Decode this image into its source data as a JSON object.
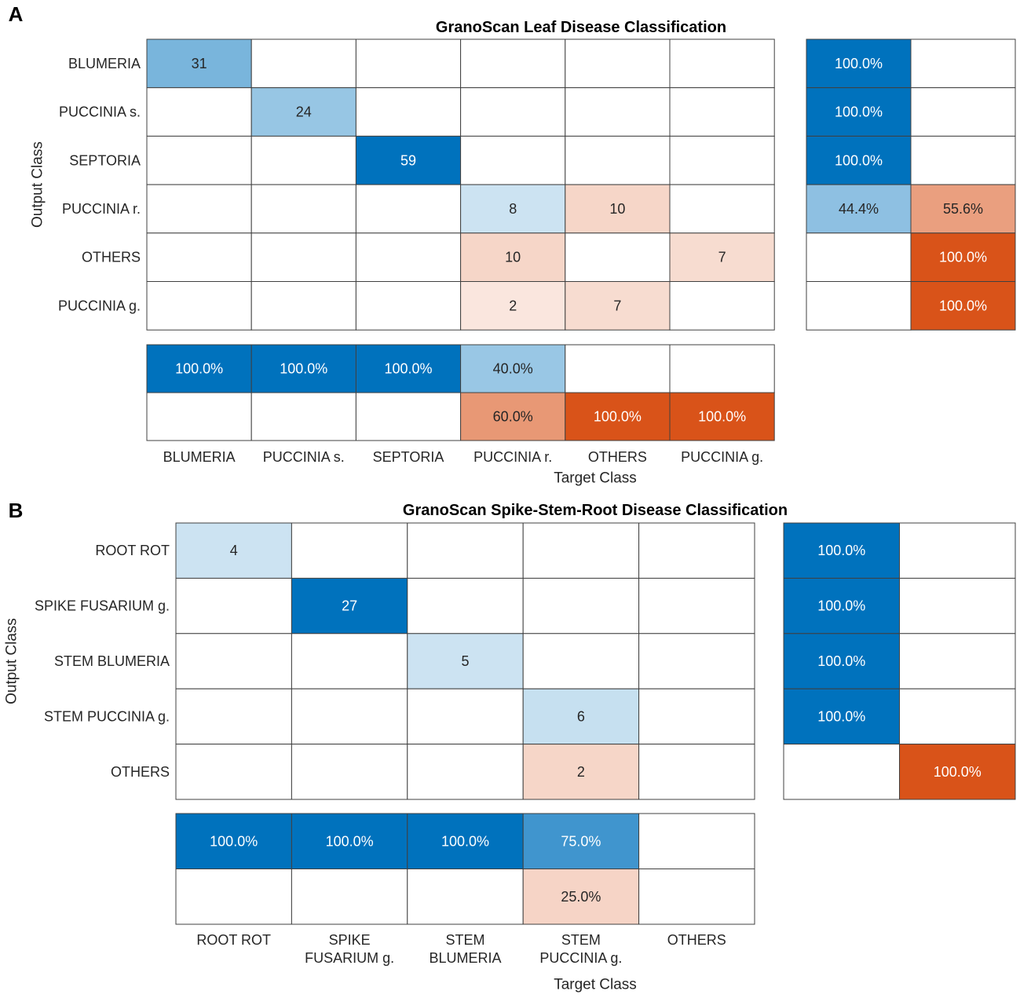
{
  "chart_data": [
    {
      "type": "heatmap",
      "panel_label": "A",
      "title": "GranoScan Leaf Disease Classification",
      "xlabel": "Target Class",
      "ylabel": "Output Class",
      "row_labels": [
        "BLUMERIA",
        "PUCCINIA s.",
        "SEPTORIA",
        "PUCCINIA r.",
        "OTHERS",
        "PUCCINIA g."
      ],
      "col_labels": [
        [
          "BLUMERIA"
        ],
        [
          "PUCCINIA s."
        ],
        [
          "SEPTORIA"
        ],
        [
          "PUCCINIA r."
        ],
        [
          "OTHERS"
        ],
        [
          "PUCCINIA g."
        ]
      ],
      "matrix": [
        [
          31,
          0,
          0,
          0,
          0,
          0
        ],
        [
          0,
          24,
          0,
          0,
          0,
          0
        ],
        [
          0,
          0,
          59,
          0,
          0,
          0
        ],
        [
          0,
          0,
          0,
          8,
          10,
          0
        ],
        [
          0,
          0,
          0,
          10,
          0,
          7
        ],
        [
          0,
          0,
          0,
          2,
          7,
          0
        ]
      ],
      "row_summary": [
        [
          "100.0%",
          ""
        ],
        [
          "100.0%",
          ""
        ],
        [
          "100.0%",
          ""
        ],
        [
          "44.4%",
          "55.6%"
        ],
        [
          "",
          "100.0%"
        ],
        [
          "",
          "100.0%"
        ]
      ],
      "row_summary_values": [
        [
          100,
          0
        ],
        [
          100,
          0
        ],
        [
          100,
          0
        ],
        [
          44.4,
          55.6
        ],
        [
          0,
          100
        ],
        [
          0,
          100
        ]
      ],
      "col_summary": [
        [
          "100.0%",
          "100.0%",
          "100.0%",
          "40.0%",
          "",
          ""
        ],
        [
          "",
          "",
          "",
          "60.0%",
          "100.0%",
          "100.0%"
        ]
      ],
      "col_summary_values": [
        [
          100,
          100,
          100,
          40,
          0,
          0
        ],
        [
          0,
          0,
          0,
          60,
          100,
          100
        ]
      ]
    },
    {
      "type": "heatmap",
      "panel_label": "B",
      "title": "GranoScan Spike-Stem-Root Disease Classification",
      "xlabel": "Target Class",
      "ylabel": "Output Class",
      "row_labels": [
        "ROOT ROT",
        "SPIKE FUSARIUM g.",
        "STEM BLUMERIA",
        "STEM PUCCINIA g.",
        "OTHERS"
      ],
      "col_labels": [
        [
          "ROOT ROT"
        ],
        [
          "SPIKE",
          "FUSARIUM g."
        ],
        [
          "STEM",
          "BLUMERIA"
        ],
        [
          "STEM",
          "PUCCINIA g."
        ],
        [
          "OTHERS"
        ]
      ],
      "matrix": [
        [
          4,
          0,
          0,
          0,
          0
        ],
        [
          0,
          27,
          0,
          0,
          0
        ],
        [
          0,
          0,
          5,
          0,
          0
        ],
        [
          0,
          0,
          0,
          6,
          0
        ],
        [
          0,
          0,
          0,
          2,
          0
        ]
      ],
      "row_summary": [
        [
          "100.0%",
          ""
        ],
        [
          "100.0%",
          ""
        ],
        [
          "100.0%",
          ""
        ],
        [
          "100.0%",
          ""
        ],
        [
          "",
          "100.0%"
        ]
      ],
      "row_summary_values": [
        [
          100,
          0
        ],
        [
          100,
          0
        ],
        [
          100,
          0
        ],
        [
          100,
          0
        ],
        [
          0,
          100
        ]
      ],
      "col_summary": [
        [
          "100.0%",
          "100.0%",
          "100.0%",
          "75.0%",
          ""
        ],
        [
          "",
          "",
          "",
          "25.0%",
          ""
        ]
      ],
      "col_summary_values": [
        [
          100,
          100,
          100,
          75,
          0
        ],
        [
          0,
          0,
          0,
          25,
          0
        ]
      ]
    }
  ],
  "colors": {
    "blue_strong": "#0072BD",
    "orange_strong": "#D95319",
    "white": "#FFFFFF",
    "grid": "#404040",
    "text_dark": "#262626"
  }
}
